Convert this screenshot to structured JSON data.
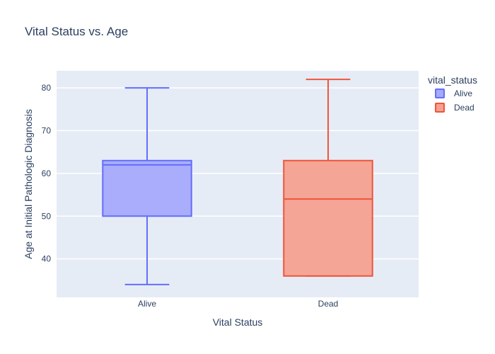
{
  "chart_data": {
    "type": "box",
    "title": "Vital Status vs. Age",
    "xlabel": "Vital Status",
    "ylabel": "Age at Initial Pathologic Diagnosis",
    "ylim": [
      31,
      84
    ],
    "yticks": [
      40,
      50,
      60,
      70,
      80
    ],
    "categories": [
      "Alive",
      "Dead"
    ],
    "legend": {
      "title": "vital_status",
      "placement": "right"
    },
    "grid": true,
    "series": [
      {
        "name": "Alive",
        "color": "#636efa",
        "fill": "#a5aafb",
        "min": 34,
        "q1": 50,
        "median": 62,
        "q3": 63,
        "max": 80
      },
      {
        "name": "Dead",
        "color": "#ef553b",
        "fill": "#f4a190",
        "min": 36,
        "q1": 36,
        "median": 54,
        "q3": 63,
        "max": 82
      }
    ]
  }
}
